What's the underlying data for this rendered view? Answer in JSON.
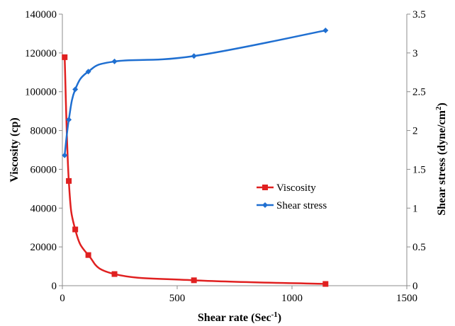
{
  "chart_data": {
    "type": "line",
    "xlabel": "Shear rate (Sec",
    "xlabel_sup": "-1",
    "xlabel_end": ")",
    "ylabel_left": "Viscosity (cp)",
    "ylabel_right": "Shear stress (dyne/cm",
    "ylabel_right_sup": "2",
    "ylabel_right_end": ")",
    "xlim": [
      0,
      1500
    ],
    "ylim_left": [
      0,
      140000
    ],
    "ylim_right": [
      0,
      3.5
    ],
    "x_ticks": [
      0,
      500,
      1000,
      1500
    ],
    "x_tick_labels": [
      "0",
      "500",
      "1000",
      "1500"
    ],
    "y_left_ticks": [
      0,
      20000,
      40000,
      60000,
      80000,
      100000,
      120000,
      140000
    ],
    "y_left_tick_labels": [
      "0",
      "20000",
      "40000",
      "60000",
      "80000",
      "100000",
      "120000",
      "140000"
    ],
    "y_right_ticks": [
      0,
      0.5,
      1,
      1.5,
      2,
      2.5,
      3,
      3.5
    ],
    "y_right_tick_labels": [
      "0",
      "0.5",
      "1",
      "1.5",
      "2",
      "2.5",
      "3",
      "3.5"
    ],
    "grid": false,
    "legend_position": "center-right",
    "series": [
      {
        "name": "Viscosity",
        "axis": "left",
        "color": "#e02020",
        "marker": "square",
        "x": [
          10,
          28,
          56,
          113,
          227,
          573,
          1146
        ],
        "y": [
          117800,
          54000,
          29000,
          15800,
          6000,
          2800,
          900
        ]
      },
      {
        "name": "Shear stress",
        "axis": "right",
        "color": "#1f6fd1",
        "marker": "diamond",
        "x": [
          10,
          28,
          56,
          113,
          227,
          573,
          1146
        ],
        "y": [
          1.68,
          2.14,
          2.53,
          2.76,
          2.89,
          2.96,
          3.29
        ]
      }
    ]
  }
}
